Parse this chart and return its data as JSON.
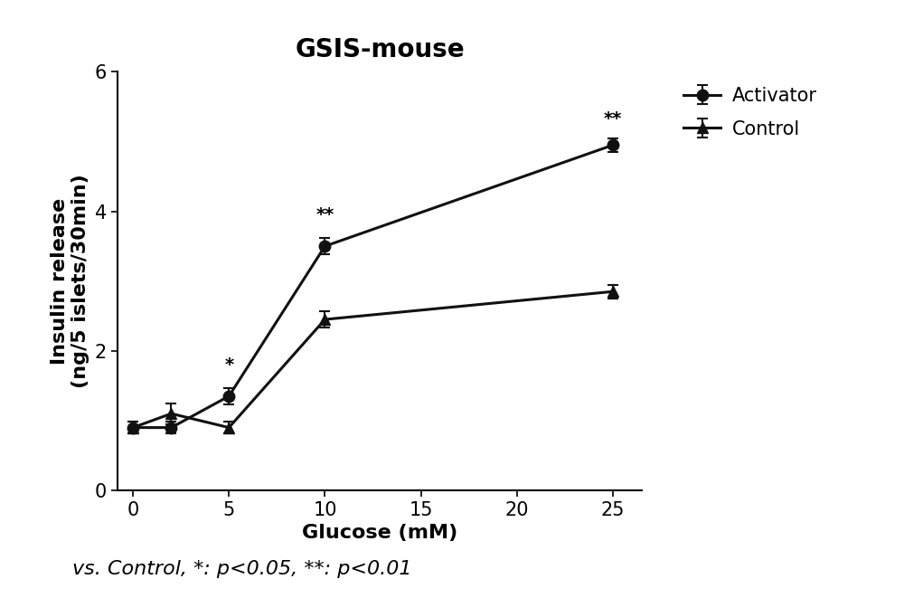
{
  "title": "GSIS-mouse",
  "xlabel": "Glucose (mM)",
  "ylabel": "Insulin release\n(ng/5 islets/30min)",
  "activator_x": [
    0,
    2,
    5,
    10,
    25
  ],
  "activator_y": [
    0.9,
    0.9,
    1.35,
    3.5,
    4.95
  ],
  "activator_yerr": [
    0.08,
    0.08,
    0.12,
    0.12,
    0.1
  ],
  "control_x": [
    0,
    2,
    5,
    10,
    25
  ],
  "control_y": [
    0.9,
    1.1,
    0.9,
    2.45,
    2.85
  ],
  "control_yerr": [
    0.08,
    0.15,
    0.08,
    0.12,
    0.1
  ],
  "annotations_activator": {
    "5": "*",
    "10": "**",
    "25": "**"
  },
  "annotation_offsets_activator": {
    "5": [
      0,
      0.2
    ],
    "10": [
      0,
      0.2
    ],
    "25": [
      0,
      0.15
    ]
  },
  "xlim": [
    -0.8,
    26.5
  ],
  "ylim": [
    0,
    6
  ],
  "yticks": [
    0,
    2,
    4,
    6
  ],
  "xticks": [
    0,
    5,
    10,
    15,
    20,
    25
  ],
  "line_color": "#111111",
  "marker_color": "#111111",
  "line_width": 2.2,
  "marker_size": 9,
  "legend_labels": [
    "Activator",
    "Control"
  ],
  "footnote": "vs. Control, *: p<0.05, **: p<0.01",
  "background_color": "#ffffff",
  "title_fontsize": 20,
  "label_fontsize": 16,
  "tick_fontsize": 15,
  "legend_fontsize": 15,
  "annotation_fontsize": 14,
  "footnote_fontsize": 16
}
